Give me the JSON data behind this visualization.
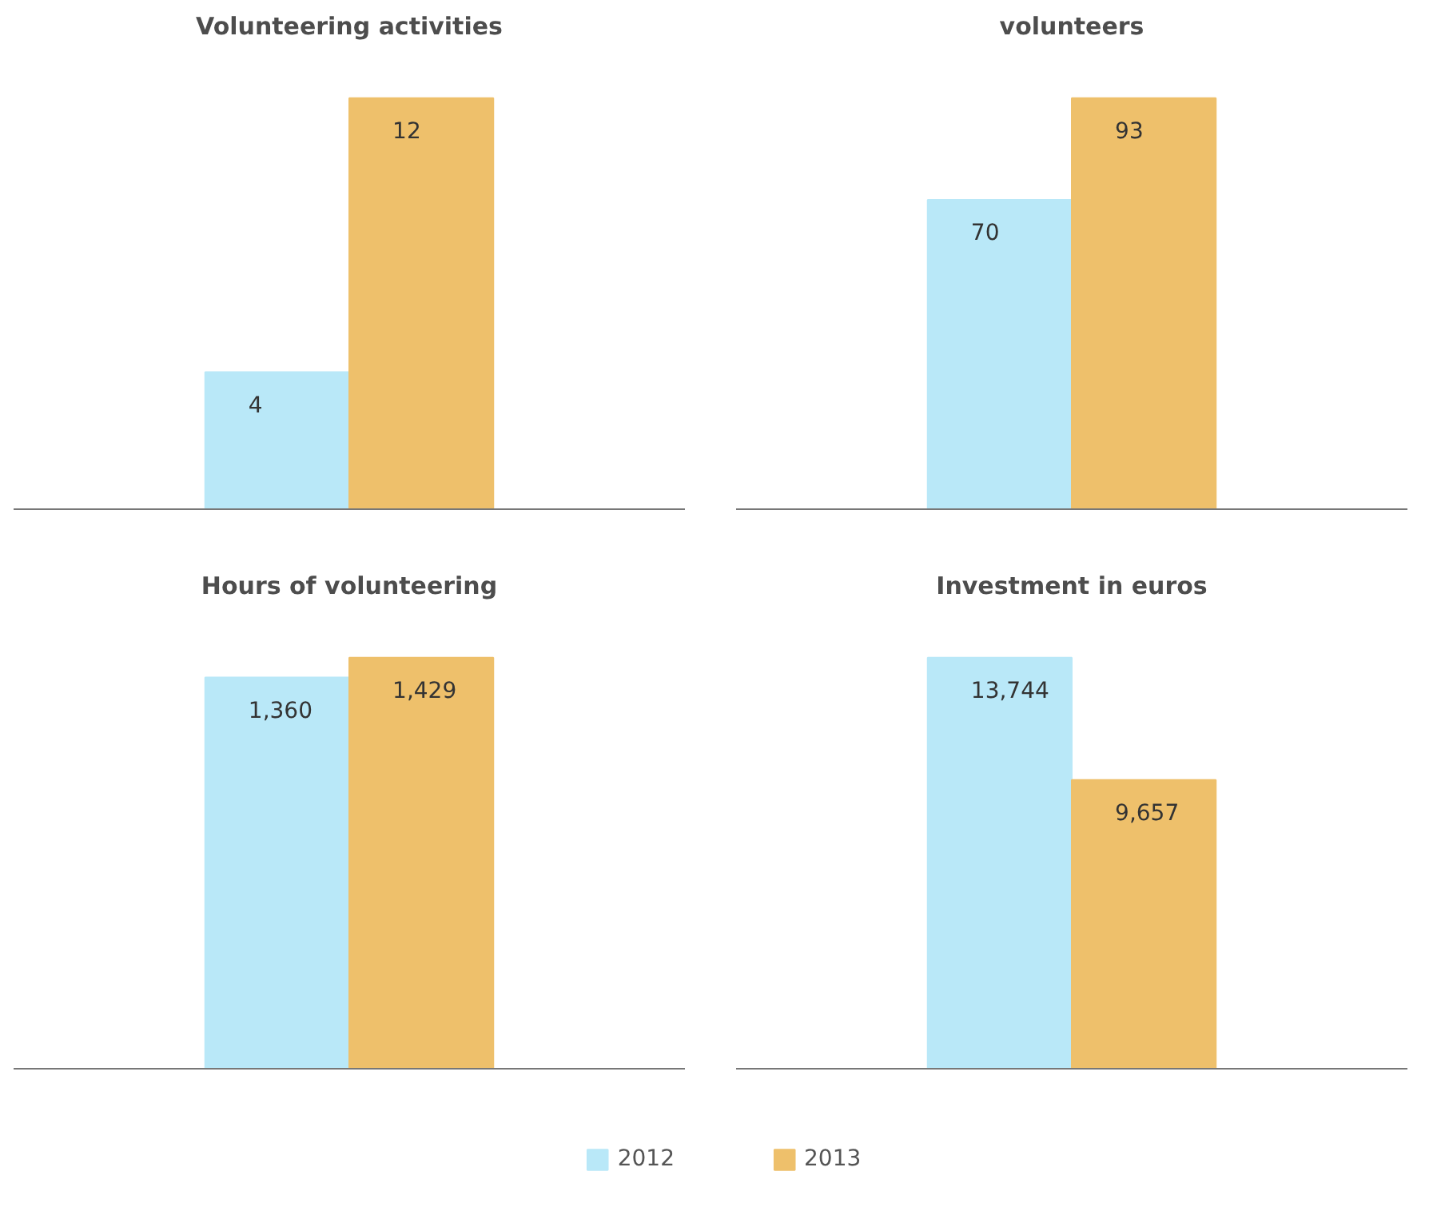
{
  "chart_data": [
    {
      "type": "bar",
      "title": "Volunteering activities",
      "categories": [
        null
      ],
      "tick_labels": false,
      "grid": false,
      "legend": "bottom",
      "series": [
        {
          "name": "2012",
          "color": "#b9e8f8",
          "values": [
            4
          ],
          "value_labels": [
            "4"
          ]
        },
        {
          "name": "2013",
          "color": "#eec06b",
          "values": [
            12
          ],
          "value_labels": [
            "12"
          ]
        }
      ]
    },
    {
      "type": "bar",
      "title": "volunteers",
      "categories": [
        null
      ],
      "tick_labels": false,
      "grid": false,
      "legend": "bottom",
      "series": [
        {
          "name": "2012",
          "color": "#b9e8f8",
          "values": [
            70
          ],
          "value_labels": [
            "70"
          ]
        },
        {
          "name": "2013",
          "color": "#eec06b",
          "values": [
            93
          ],
          "value_labels": [
            "93"
          ]
        }
      ]
    },
    {
      "type": "bar",
      "title": "Hours of volunteering",
      "categories": [
        null
      ],
      "tick_labels": false,
      "grid": false,
      "legend": "bottom",
      "series": [
        {
          "name": "2012",
          "color": "#b9e8f8",
          "values": [
            1360
          ],
          "value_labels": [
            "1,360"
          ]
        },
        {
          "name": "2013",
          "color": "#eec06b",
          "values": [
            1429
          ],
          "value_labels": [
            "1,429"
          ]
        }
      ]
    },
    {
      "type": "bar",
      "title": "Investment in euros",
      "categories": [
        null
      ],
      "tick_labels": false,
      "grid": false,
      "legend": "bottom",
      "series": [
        {
          "name": "2012",
          "color": "#b9e8f8",
          "values": [
            13744
          ],
          "value_labels": [
            "13,744"
          ]
        },
        {
          "name": "2013",
          "color": "#eec06b",
          "values": [
            9657
          ],
          "value_labels": [
            "9,657"
          ]
        }
      ]
    }
  ]
}
